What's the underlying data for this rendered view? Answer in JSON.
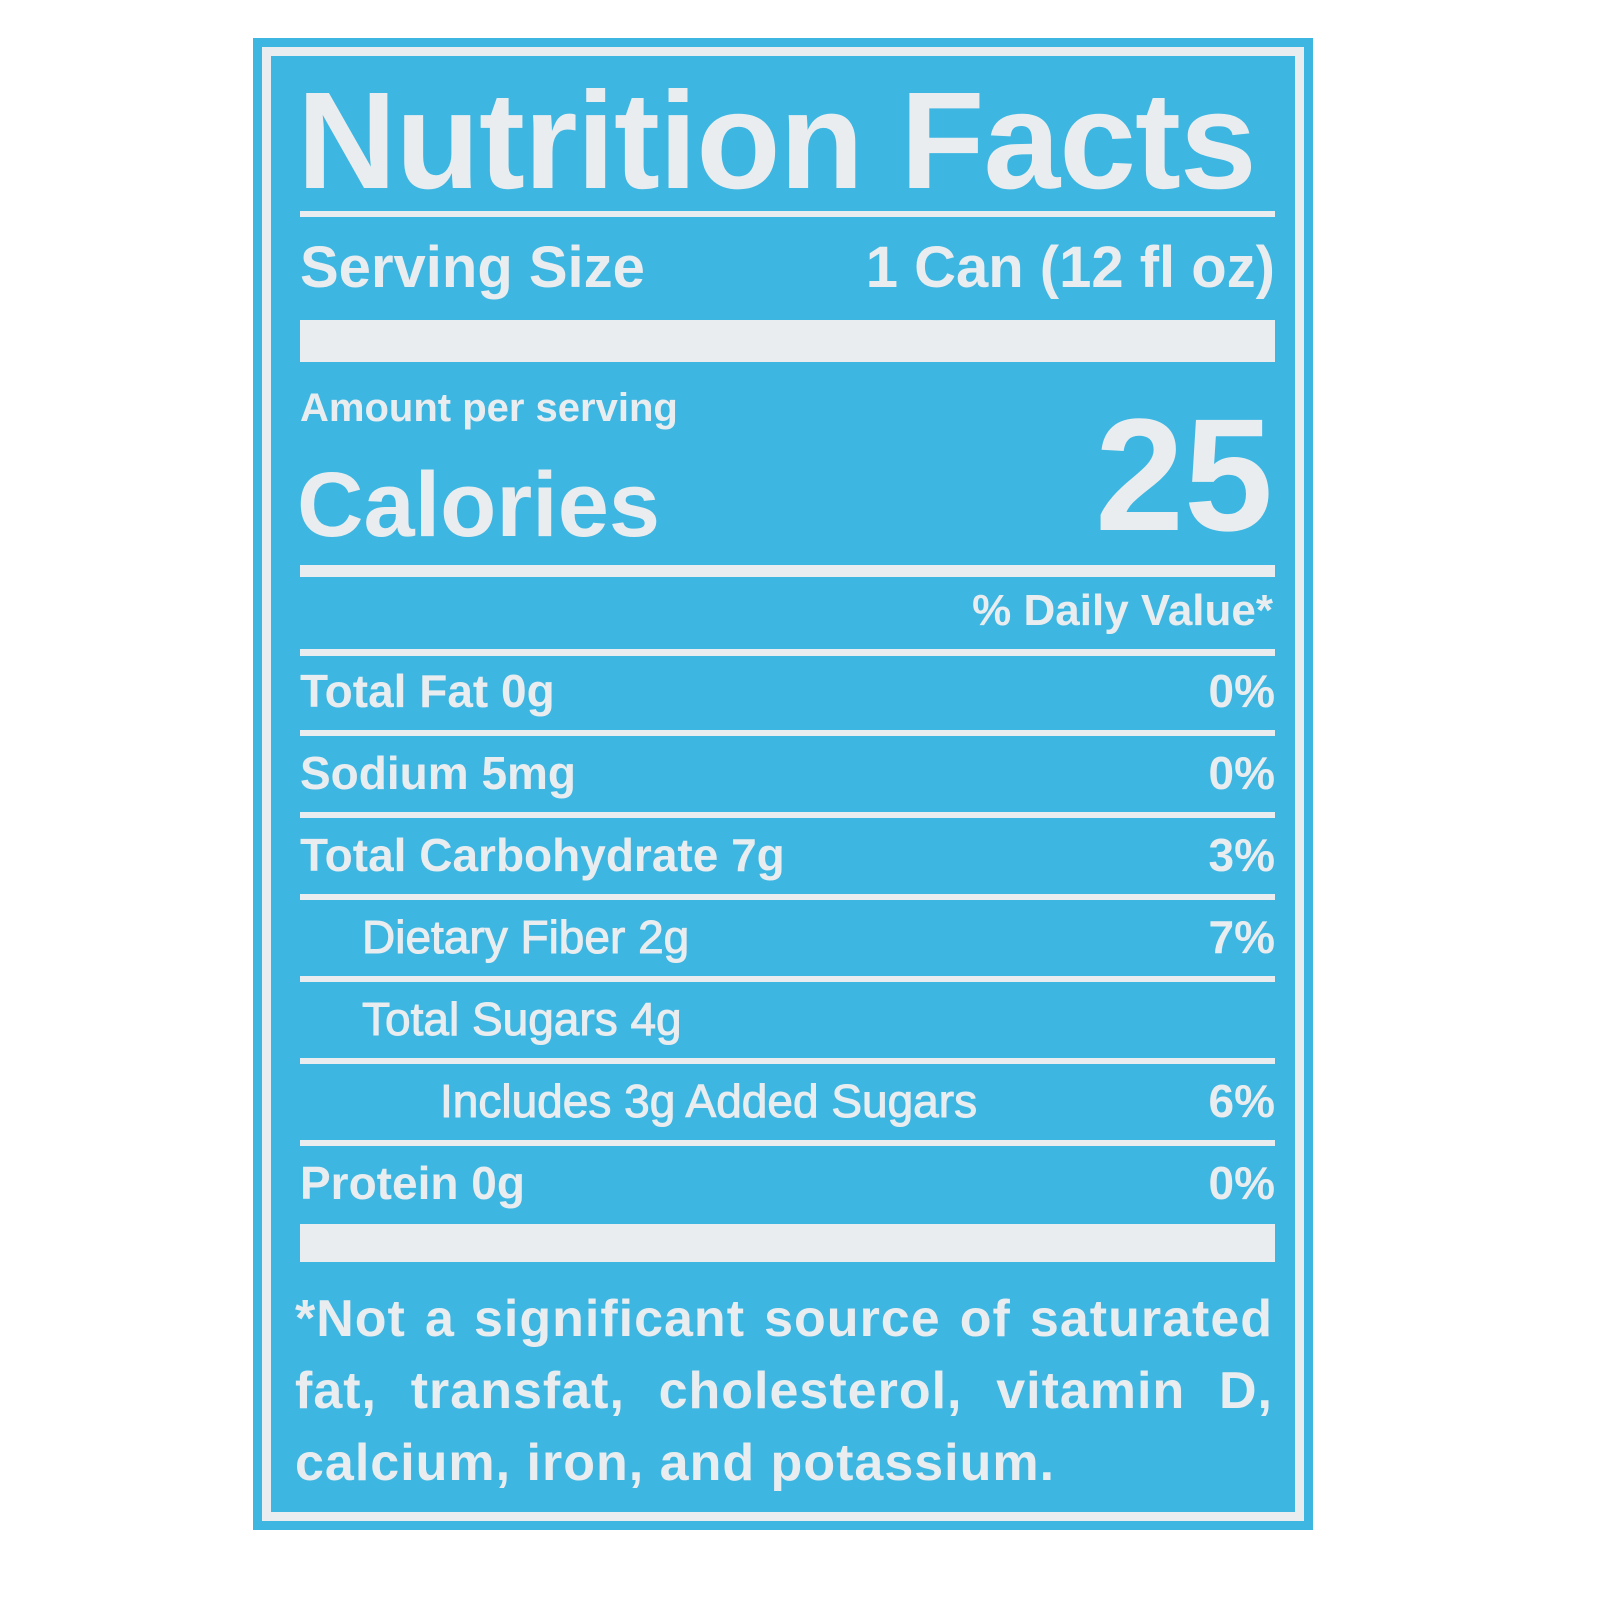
{
  "colors": {
    "panel": "#3db6e2",
    "text": "#e9edef"
  },
  "title": "Nutrition Facts",
  "serving": {
    "label": "Serving Size",
    "value": "1 Can (12 fl oz)"
  },
  "amount_per_serving": "Amount per serving",
  "calories": {
    "label": "Calories",
    "value": "25"
  },
  "daily_value_header": "% Daily Value*",
  "nutrients": [
    {
      "label": "Total Fat 0g",
      "dv": "0%",
      "indent": 0
    },
    {
      "label": "Sodium 5mg",
      "dv": "0%",
      "indent": 0
    },
    {
      "label": "Total Carbohydrate 7g",
      "dv": "3%",
      "indent": 0
    },
    {
      "label": "Dietary Fiber 2g",
      "dv": "7%",
      "indent": 1
    },
    {
      "label": "Total Sugars 4g",
      "dv": "",
      "indent": 1
    },
    {
      "label": "Includes 3g Added Sugars",
      "dv": "6%",
      "indent": 2
    },
    {
      "label": "Protein 0g",
      "dv": "0%",
      "indent": 0
    }
  ],
  "footnote": "*Not a significant source of saturated fat, transfat, cholesterol, vitamin D, calcium, iron, and potassium."
}
